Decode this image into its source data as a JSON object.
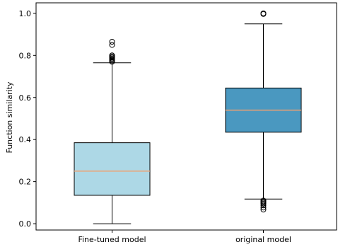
{
  "chart_data": {
    "type": "box",
    "xlabel": "",
    "ylabel": "Function similarity",
    "ylim": [
      -0.03,
      1.05
    ],
    "yticks": [
      0.0,
      0.2,
      0.4,
      0.6,
      0.8,
      1.0
    ],
    "ytick_labels": [
      "0.0",
      "0.2",
      "0.4",
      "0.6",
      "0.8",
      "1.0"
    ],
    "grid": false,
    "categories": [
      "Fine-tuned model",
      "original model"
    ],
    "boxes": [
      {
        "category": "Fine-tuned model",
        "whisker_low": 0.0,
        "q1": 0.135,
        "median": 0.25,
        "q3": 0.385,
        "whisker_high": 0.765,
        "outliers": [
          0.77,
          0.775,
          0.78,
          0.785,
          0.79,
          0.795,
          0.8,
          0.85,
          0.865
        ],
        "fill": "#add8e6"
      },
      {
        "category": "original model",
        "whisker_low": 0.117,
        "q1": 0.435,
        "median": 0.54,
        "q3": 0.645,
        "whisker_high": 0.95,
        "outliers": [
          0.067,
          0.077,
          0.087,
          0.095,
          0.1,
          0.105,
          0.11,
          0.997,
          1.0
        ],
        "fill": "#4a98c0"
      }
    ],
    "median_color": "#f0a070"
  }
}
